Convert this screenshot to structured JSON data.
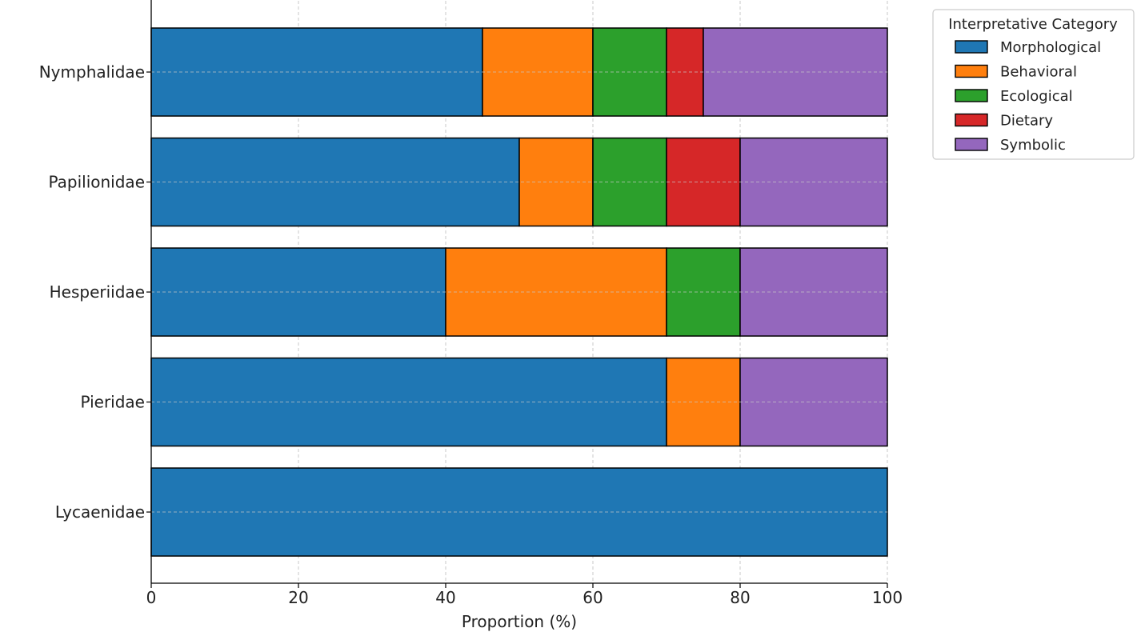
{
  "chart_data": {
    "type": "bar",
    "orientation": "horizontal",
    "stacked": true,
    "categories": [
      "Lycaenidae",
      "Pieridae",
      "Hesperiidae",
      "Papilionidae",
      "Nymphalidae"
    ],
    "series": [
      {
        "name": "Morphological",
        "color": "#1f77b4",
        "values": [
          100,
          70,
          40,
          50,
          45
        ]
      },
      {
        "name": "Behavioral",
        "color": "#ff7f0e",
        "values": [
          0,
          10,
          30,
          10,
          15
        ]
      },
      {
        "name": "Ecological",
        "color": "#2ca02c",
        "values": [
          0,
          0,
          10,
          10,
          10
        ]
      },
      {
        "name": "Dietary",
        "color": "#d62728",
        "values": [
          0,
          0,
          0,
          10,
          5
        ]
      },
      {
        "name": "Symbolic",
        "color": "#9467bd",
        "values": [
          0,
          20,
          20,
          20,
          25
        ]
      }
    ],
    "xlabel": "Proportion (%)",
    "ylabel": "",
    "xlim": [
      0,
      100
    ],
    "xticks": [
      "0",
      "20",
      "40",
      "60",
      "80",
      "100"
    ],
    "grid": true,
    "legend": {
      "title": "Interpretative Category",
      "placement": "outside-top-right"
    }
  }
}
